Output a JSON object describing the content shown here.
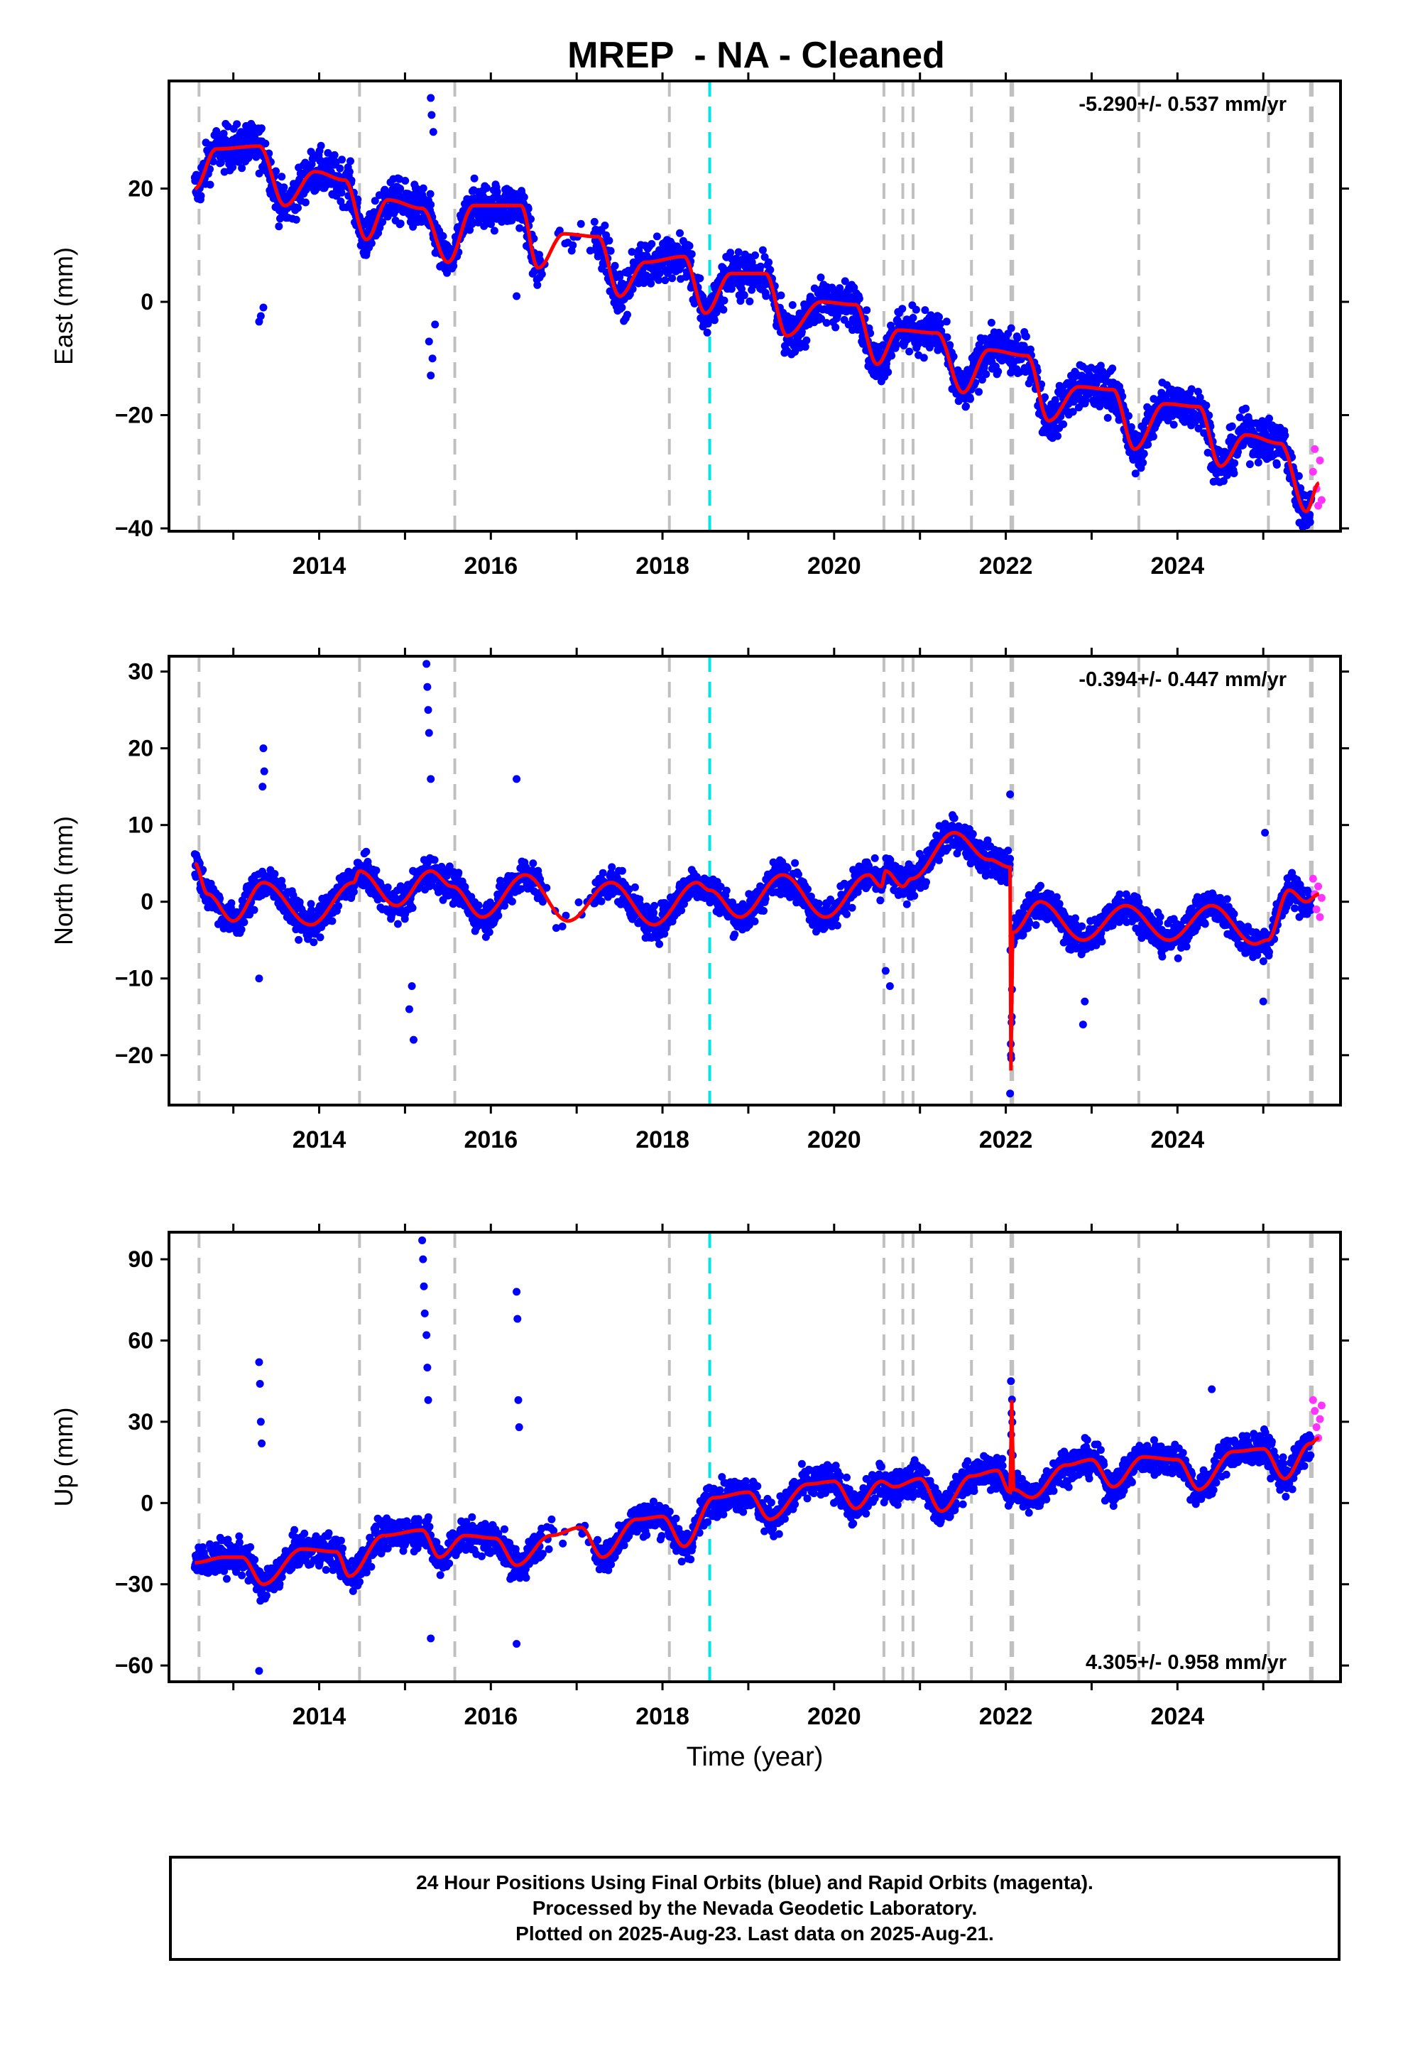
{
  "title": "MREP  - NA - Cleaned",
  "footer": {
    "lines": [
      "24 Hour Positions Using Final Orbits (blue) and Rapid Orbits (magenta).",
      "Processed by the Nevada Geodetic Laboratory.",
      "Plotted on 2025-Aug-23. Last data on 2025-Aug-21."
    ]
  },
  "colors": {
    "final_orbits": "#0000ff",
    "rapid_orbits": "#ff33ff",
    "model": "#ff0000",
    "event_lines": "#c0c0c0",
    "highlight_line": "#00e5e5"
  },
  "chart_data": [
    {
      "type": "scatter",
      "component": "East",
      "ylabel": "East (mm)",
      "xlabel": "",
      "xlim": [
        2012.25,
        2025.9
      ],
      "ylim": [
        -40.5,
        39
      ],
      "yticks": [
        20,
        0,
        -20,
        -40
      ],
      "xticks": [
        2014,
        2016,
        2018,
        2020,
        2022,
        2024
      ],
      "rate_label": "-5.290+/- 0.537 mm/yr",
      "rate_position": "top-right",
      "trend": {
        "start_year": 2012.55,
        "start_value": 25.5,
        "rate": -5.29,
        "seasonal_amplitude": 5
      },
      "model_anchors": [
        [
          2012.55,
          20
        ],
        [
          2012.8,
          27
        ],
        [
          2013.3,
          27.5
        ],
        [
          2013.6,
          17
        ],
        [
          2013.95,
          23
        ],
        [
          2014.3,
          21.5
        ],
        [
          2014.55,
          11
        ],
        [
          2014.8,
          18
        ],
        [
          2015.2,
          16.5
        ],
        [
          2015.5,
          7
        ],
        [
          2015.8,
          17
        ],
        [
          2016.35,
          17
        ],
        [
          2016.55,
          6
        ],
        [
          2016.85,
          12
        ],
        [
          2017.25,
          11.5
        ],
        [
          2017.5,
          1
        ],
        [
          2017.8,
          7
        ],
        [
          2018.25,
          8
        ],
        [
          2018.5,
          -2
        ],
        [
          2018.8,
          5
        ],
        [
          2019.2,
          5
        ],
        [
          2019.45,
          -6
        ],
        [
          2019.85,
          0
        ],
        [
          2020.25,
          -0.5
        ],
        [
          2020.5,
          -11
        ],
        [
          2020.75,
          -5
        ],
        [
          2021.2,
          -5.5
        ],
        [
          2021.5,
          -16
        ],
        [
          2021.8,
          -8.5
        ],
        [
          2022.25,
          -9.5
        ],
        [
          2022.5,
          -21
        ],
        [
          2022.85,
          -15
        ],
        [
          2023.25,
          -15.5
        ],
        [
          2023.5,
          -26
        ],
        [
          2023.85,
          -18
        ],
        [
          2024.25,
          -18.5
        ],
        [
          2024.5,
          -29
        ],
        [
          2024.8,
          -23.5
        ],
        [
          2025.2,
          -25
        ],
        [
          2025.5,
          -37
        ],
        [
          2025.65,
          -32
        ]
      ],
      "outliers": [
        [
          2013.3,
          -3.5
        ],
        [
          2013.32,
          -2.5
        ],
        [
          2013.35,
          -1
        ],
        [
          2015.3,
          -13
        ],
        [
          2015.32,
          -10
        ],
        [
          2015.28,
          -7
        ],
        [
          2015.3,
          36
        ],
        [
          2015.31,
          33
        ],
        [
          2015.33,
          30
        ],
        [
          2015.35,
          -4
        ],
        [
          2016.3,
          1
        ]
      ],
      "rapid_points": [
        [
          2025.58,
          -30
        ],
        [
          2025.6,
          -26
        ],
        [
          2025.62,
          -33
        ],
        [
          2025.64,
          -36
        ],
        [
          2025.66,
          -28
        ],
        [
          2025.68,
          -35
        ]
      ],
      "event_lines": [
        2012.6,
        2014.47,
        2015.58,
        2018.08,
        2020.58,
        2020.8,
        2020.92,
        2021.6,
        2022.06,
        2022.08,
        2023.55,
        2025.06,
        2025.55,
        2025.57
      ],
      "highlight_line": 2018.55
    },
    {
      "type": "scatter",
      "component": "North",
      "ylabel": "North (mm)",
      "xlabel": "",
      "xlim": [
        2012.25,
        2025.9
      ],
      "ylim": [
        -26.5,
        32
      ],
      "yticks": [
        30,
        20,
        10,
        0,
        -10,
        -20
      ],
      "xticks": [
        2014,
        2016,
        2018,
        2020,
        2022,
        2024
      ],
      "rate_label": "-0.394+/- 0.447 mm/yr",
      "rate_position": "top-right",
      "trend": {
        "start_year": 2012.55,
        "start_value": 0,
        "rate": -0.394,
        "seasonal_amplitude": 2.8
      },
      "model_anchors": [
        [
          2012.55,
          5
        ],
        [
          2012.7,
          1
        ],
        [
          2013.0,
          -2.5
        ],
        [
          2013.35,
          2.5
        ],
        [
          2013.9,
          -3
        ],
        [
          2014.4,
          2.5
        ],
        [
          2014.47,
          4
        ],
        [
          2014.9,
          -0.5
        ],
        [
          2015.3,
          4
        ],
        [
          2015.55,
          2
        ],
        [
          2015.9,
          -2
        ],
        [
          2016.4,
          3.5
        ],
        [
          2016.9,
          -2.5
        ],
        [
          2017.4,
          2.5
        ],
        [
          2017.9,
          -3
        ],
        [
          2018.4,
          2.5
        ],
        [
          2018.55,
          1.5
        ],
        [
          2018.9,
          -2
        ],
        [
          2019.4,
          3.5
        ],
        [
          2019.9,
          -2
        ],
        [
          2020.4,
          3.5
        ],
        [
          2020.55,
          2
        ],
        [
          2020.6,
          4
        ],
        [
          2020.8,
          2
        ],
        [
          2020.9,
          3
        ],
        [
          2021.4,
          9
        ],
        [
          2021.8,
          5.5
        ],
        [
          2022.05,
          4.5
        ],
        [
          2022.06,
          -22
        ],
        [
          2022.08,
          -4
        ],
        [
          2022.4,
          0
        ],
        [
          2022.9,
          -5
        ],
        [
          2023.4,
          -0.5
        ],
        [
          2023.9,
          -5
        ],
        [
          2024.4,
          -0.5
        ],
        [
          2024.9,
          -5.5
        ],
        [
          2025.05,
          -5
        ],
        [
          2025.3,
          1.5
        ],
        [
          2025.5,
          0
        ],
        [
          2025.65,
          1
        ]
      ],
      "outliers": [
        [
          2013.35,
          20
        ],
        [
          2013.36,
          17
        ],
        [
          2013.34,
          15
        ],
        [
          2013.3,
          -10
        ],
        [
          2015.25,
          31
        ],
        [
          2015.26,
          28
        ],
        [
          2015.27,
          25
        ],
        [
          2015.28,
          22
        ],
        [
          2015.3,
          16
        ],
        [
          2015.1,
          -18
        ],
        [
          2015.05,
          -14
        ],
        [
          2015.08,
          -11
        ],
        [
          2016.3,
          16
        ],
        [
          2020.6,
          -9
        ],
        [
          2020.65,
          -11
        ],
        [
          2022.05,
          -25
        ],
        [
          2022.06,
          -20
        ],
        [
          2022.07,
          -15
        ],
        [
          2022.05,
          14
        ],
        [
          2022.9,
          -16
        ],
        [
          2022.92,
          -13
        ],
        [
          2025.0,
          -13
        ],
        [
          2025.02,
          9
        ]
      ],
      "rapid_points": [
        [
          2025.58,
          3
        ],
        [
          2025.6,
          1
        ],
        [
          2025.62,
          -1
        ],
        [
          2025.64,
          2
        ],
        [
          2025.66,
          -2
        ],
        [
          2025.68,
          0.5
        ]
      ],
      "event_lines": [
        2012.6,
        2014.47,
        2015.58,
        2018.08,
        2020.58,
        2020.8,
        2020.92,
        2021.6,
        2022.06,
        2022.08,
        2023.55,
        2025.06,
        2025.55,
        2025.57
      ],
      "highlight_line": 2018.55
    },
    {
      "type": "scatter",
      "component": "Up",
      "ylabel": "Up (mm)",
      "xlabel": "Time (year)",
      "xlim": [
        2012.25,
        2025.9
      ],
      "ylim": [
        -66,
        100
      ],
      "yticks": [
        90,
        60,
        30,
        0,
        -30,
        -60
      ],
      "xticks": [
        2014,
        2016,
        2018,
        2020,
        2022,
        2024
      ],
      "rate_label": "4.305+/- 0.958 mm/yr",
      "rate_position": "bottom-right",
      "trend": {
        "start_year": 2012.55,
        "start_value": -22,
        "rate": 4.305,
        "seasonal_amplitude": 8
      },
      "model_anchors": [
        [
          2012.55,
          -22
        ],
        [
          2012.9,
          -20
        ],
        [
          2013.1,
          -20
        ],
        [
          2013.35,
          -30
        ],
        [
          2013.8,
          -17
        ],
        [
          2014.2,
          -18
        ],
        [
          2014.35,
          -27
        ],
        [
          2014.75,
          -12
        ],
        [
          2015.2,
          -10
        ],
        [
          2015.4,
          -20
        ],
        [
          2015.7,
          -12
        ],
        [
          2016.05,
          -13
        ],
        [
          2016.3,
          -23
        ],
        [
          2016.7,
          -12
        ],
        [
          2017.05,
          -9
        ],
        [
          2017.3,
          -20
        ],
        [
          2017.7,
          -6
        ],
        [
          2018.0,
          -5
        ],
        [
          2018.25,
          -16
        ],
        [
          2018.6,
          2
        ],
        [
          2019.0,
          4
        ],
        [
          2019.25,
          -6
        ],
        [
          2019.7,
          7
        ],
        [
          2020.0,
          8
        ],
        [
          2020.25,
          -2
        ],
        [
          2020.55,
          8
        ],
        [
          2020.7,
          6
        ],
        [
          2021.0,
          9
        ],
        [
          2021.25,
          -3
        ],
        [
          2021.6,
          10
        ],
        [
          2021.9,
          12
        ],
        [
          2022.05,
          4
        ],
        [
          2022.07,
          38
        ],
        [
          2022.09,
          5
        ],
        [
          2022.3,
          2
        ],
        [
          2022.7,
          14
        ],
        [
          2023.0,
          16
        ],
        [
          2023.25,
          6
        ],
        [
          2023.6,
          17
        ],
        [
          2024.0,
          16
        ],
        [
          2024.25,
          5
        ],
        [
          2024.65,
          19
        ],
        [
          2025.0,
          20
        ],
        [
          2025.25,
          9
        ],
        [
          2025.55,
          22
        ],
        [
          2025.65,
          24
        ]
      ],
      "outliers": [
        [
          2013.3,
          52
        ],
        [
          2013.31,
          44
        ],
        [
          2013.32,
          30
        ],
        [
          2013.33,
          22
        ],
        [
          2013.3,
          -62
        ],
        [
          2015.2,
          97
        ],
        [
          2015.21,
          90
        ],
        [
          2015.22,
          80
        ],
        [
          2015.23,
          70
        ],
        [
          2015.25,
          62
        ],
        [
          2015.26,
          50
        ],
        [
          2015.27,
          38
        ],
        [
          2015.3,
          -50
        ],
        [
          2016.3,
          78
        ],
        [
          2016.31,
          68
        ],
        [
          2016.32,
          38
        ],
        [
          2016.33,
          28
        ],
        [
          2016.3,
          -52
        ],
        [
          2022.06,
          45
        ],
        [
          2024.4,
          42
        ]
      ],
      "rapid_points": [
        [
          2025.58,
          38
        ],
        [
          2025.6,
          34
        ],
        [
          2025.62,
          28
        ],
        [
          2025.64,
          24
        ],
        [
          2025.66,
          31
        ],
        [
          2025.68,
          36
        ]
      ],
      "event_lines": [
        2012.6,
        2014.47,
        2015.58,
        2018.08,
        2020.58,
        2020.8,
        2020.92,
        2021.6,
        2022.06,
        2022.08,
        2023.55,
        2025.06,
        2025.55,
        2025.57
      ],
      "highlight_line": 2018.55
    }
  ]
}
